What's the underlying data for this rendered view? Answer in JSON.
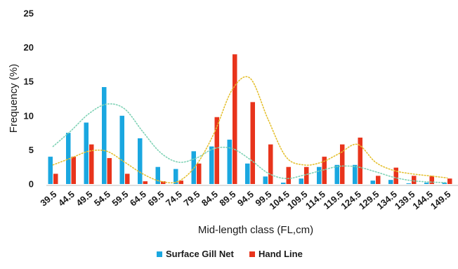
{
  "chart_data": {
    "type": "bar",
    "xlabel": "Mid-length class (FL,cm)",
    "ylabel": "Frequency (%)",
    "ylim": [
      0,
      25
    ],
    "yticks": [
      "0",
      "5",
      "10",
      "15",
      "20",
      "25"
    ],
    "categories": [
      "39.5",
      "44.5",
      "49.5",
      "54.5",
      "59.5",
      "64.5",
      "69.5",
      "74.5",
      "79.5",
      "84.5",
      "89.5",
      "94.5",
      "99.5",
      "104.5",
      "109.5",
      "114.5",
      "119.5",
      "124.5",
      "129.5",
      "134.5",
      "139.5",
      "144.5",
      "149.5"
    ],
    "grid": false,
    "legend_position": "bottom",
    "series": [
      {
        "name": "Surface Gill Net",
        "color": "#1aa7e0",
        "values": [
          4.0,
          7.5,
          9.0,
          14.2,
          10.0,
          6.7,
          2.5,
          2.2,
          4.8,
          5.5,
          6.5,
          3.0,
          1.1,
          0.2,
          0.8,
          2.5,
          2.8,
          2.8,
          0.5,
          0.6,
          0.1,
          0.2,
          0.2
        ]
      },
      {
        "name": "Hand Line",
        "color": "#e8341c",
        "values": [
          1.5,
          4.0,
          5.8,
          3.8,
          1.5,
          0.4,
          0.4,
          0.5,
          3.0,
          9.8,
          19.0,
          12.0,
          5.8,
          2.5,
          2.5,
          4.0,
          5.8,
          6.8,
          1.2,
          2.4,
          1.2,
          1.2,
          0.8
        ]
      }
    ],
    "trend_lines": [
      {
        "series": "Surface Gill Net",
        "color": "#7fd2b5",
        "style": "dotted",
        "values": [
          5.5,
          7.8,
          10.3,
          11.7,
          11.0,
          7.7,
          4.6,
          3.2,
          3.8,
          5.2,
          5.2,
          3.6,
          1.6,
          0.8,
          1.3,
          2.0,
          2.6,
          2.5,
          1.8,
          1.0,
          0.5,
          0.3,
          0.2
        ]
      },
      {
        "series": "Hand Line",
        "color": "#e5c030",
        "style": "dotted",
        "values": [
          2.8,
          3.8,
          4.8,
          4.8,
          3.2,
          1.5,
          0.4,
          0.4,
          2.8,
          7.5,
          13.8,
          15.5,
          9.5,
          4.0,
          2.8,
          3.2,
          4.5,
          5.8,
          3.2,
          2.0,
          1.5,
          1.2,
          0.9
        ]
      }
    ]
  }
}
